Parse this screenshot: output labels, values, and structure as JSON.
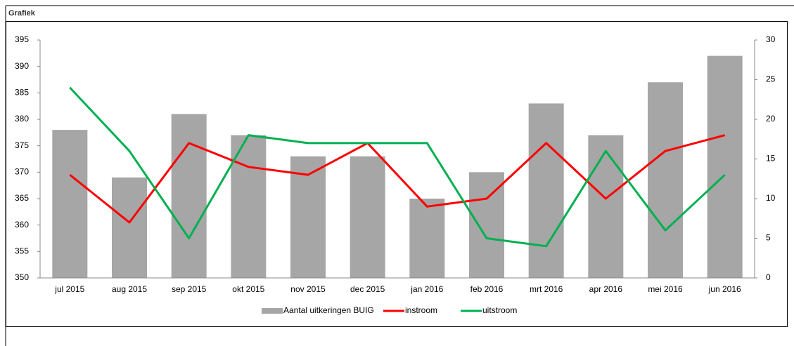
{
  "chart_data": {
    "type": "bar",
    "title": "Grafiek",
    "categories": [
      "jul 2015",
      "aug 2015",
      "sep 2015",
      "okt 2015",
      "nov 2015",
      "dec 2015",
      "jan 2016",
      "feb 2016",
      "mrt 2016",
      "apr 2016",
      "mei 2016",
      "jun 2016"
    ],
    "series": [
      {
        "name": "Aantal uitkeringen BUIG",
        "type": "bar",
        "color": "#a6a6a6",
        "values": [
          378,
          369,
          381,
          377,
          373,
          373,
          365,
          370,
          383,
          377,
          387,
          392
        ]
      },
      {
        "name": "instroom",
        "type": "line",
        "axis": "y2",
        "color": "#ff0000",
        "values": [
          13,
          7,
          17,
          14,
          13,
          17,
          9,
          10,
          17,
          10,
          16,
          18
        ]
      },
      {
        "name": "uitstroom",
        "type": "line",
        "axis": "y2",
        "color": "#00b050",
        "values": [
          24,
          16,
          5,
          18,
          17,
          17,
          17,
          5,
          4,
          16,
          6,
          13
        ]
      }
    ],
    "ylim": [
      350,
      395
    ],
    "yticks": [
      350,
      355,
      360,
      365,
      370,
      375,
      380,
      385,
      390,
      395
    ],
    "y2lim": [
      0,
      30
    ],
    "y2ticks": [
      0,
      5,
      10,
      15,
      20,
      25,
      30
    ],
    "legend": "bottom"
  }
}
